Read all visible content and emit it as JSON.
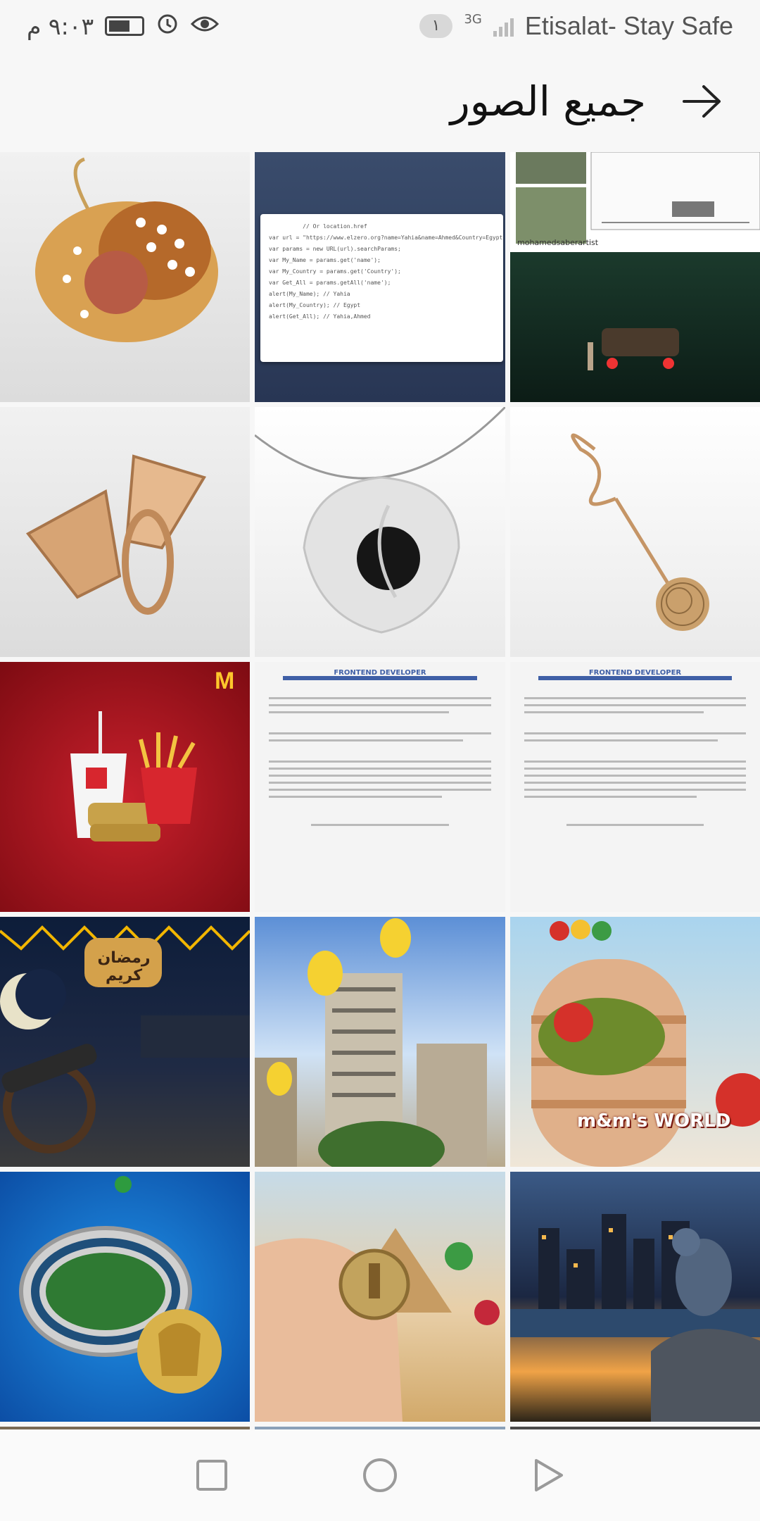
{
  "status_bar": {
    "time": "٩:٠٣ م",
    "badge": "١",
    "network": "3G",
    "carrier": "Etisalat- Stay Safe"
  },
  "header": {
    "title": "جميع الصور"
  },
  "gallery": {
    "code_lines": [
      "          // Or location.href",
      "var url = \"https://www.elzero.org?name=Yahia&name=Ahmed&Country=Egypt\";",
      "var params = new URL(url).searchParams;",
      "",
      "var My_Name = params.get('name');",
      "",
      "var My_Country = params.get('Country');",
      "",
      "var Get_All = params.getAll('name');",
      "",
      "alert(My_Name); // Yahia",
      "",
      "alert(My_Country); // Egypt",
      "",
      "alert(Get_All); // Yahia,Ahmed"
    ],
    "resume_title": "FRONTEND DEVELOPER",
    "sketch_caption": "mohamedsaberartist",
    "ramadan_text": "رمضان كريم",
    "mm_text": "m&m's WORLD"
  },
  "colors": {
    "accent_red": "#c9202c",
    "mcd_yellow": "#ffc72c",
    "doc_blue": "#3f5fa6"
  }
}
